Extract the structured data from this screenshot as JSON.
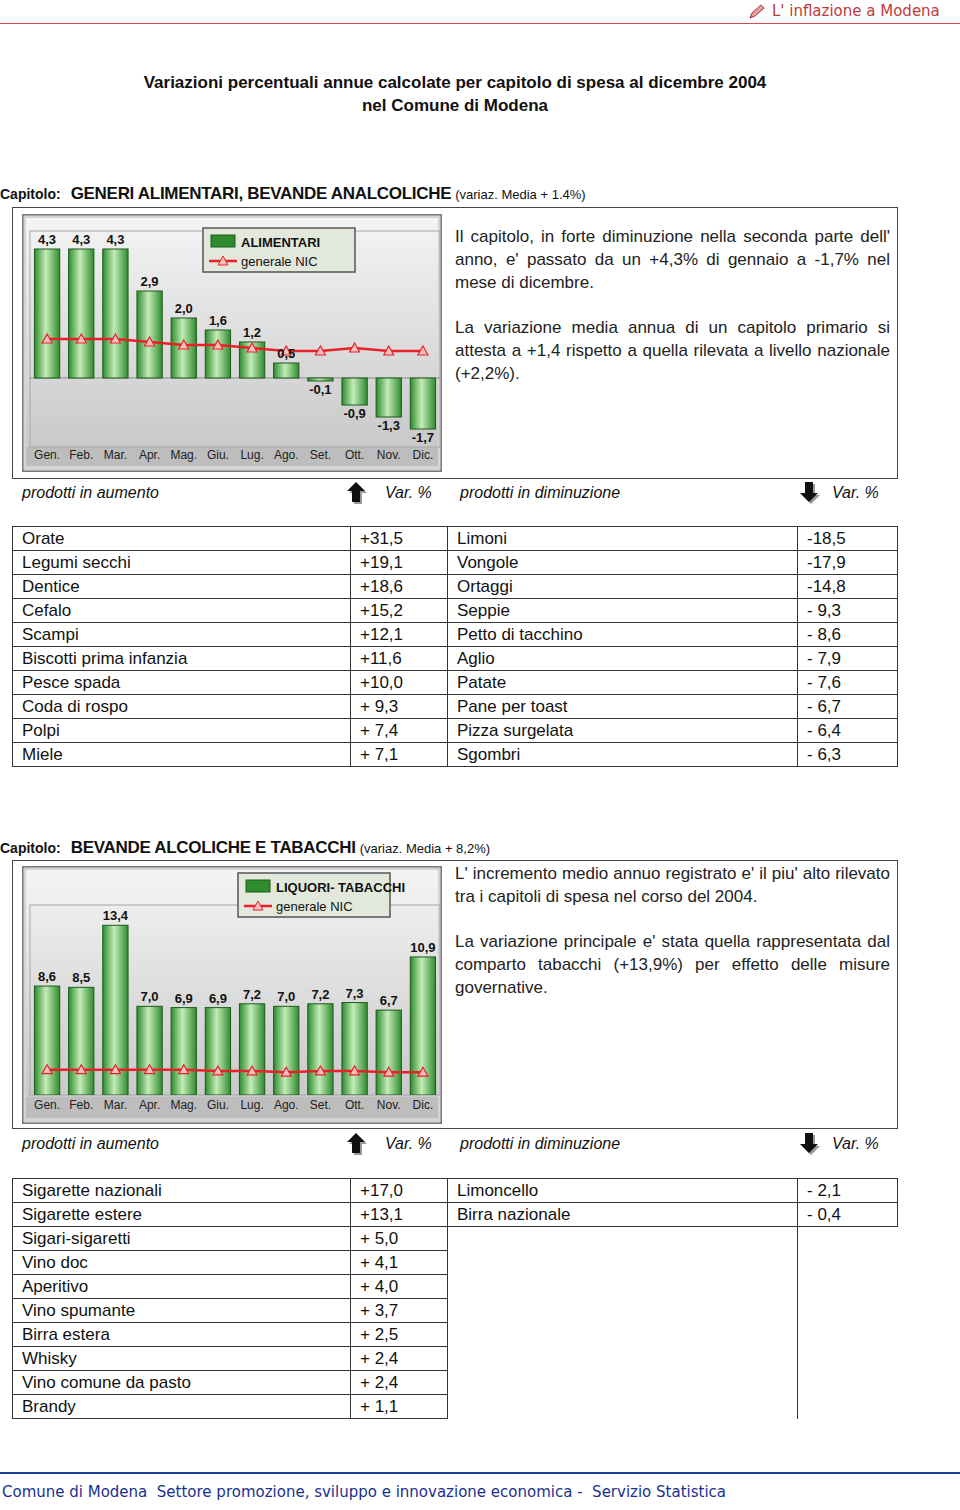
{
  "header": {
    "running_title": "L' inflazione a Modena"
  },
  "title": {
    "line1": "Variazioni percentuali annue calcolate per capitolo di spesa al dicembre 2004",
    "line2": "nel Comune di Modena"
  },
  "sections": [
    {
      "label": "Capitolo:",
      "name": "GENERI ALIMENTARI, BEVANDE ANALCOLICHE",
      "note": "(variaz. Media + 1.4%)",
      "paragraphs": [
        "Il capitolo, in forte diminuzione nella seconda parte dell' anno, e' passato da un +4,3% di gennaio a -1,7% nel mese di dicembre.",
        "La variazione media annua di un capitolo primario si attesta a +1,4 rispetto a quella rilevata a livello nazionale (+2,2%)."
      ],
      "table": {
        "header": [
          "prodotti in aumento",
          "Var. %",
          "prodotti in diminuzione",
          "Var. %"
        ],
        "increase": [
          [
            "Orate",
            "+31,5"
          ],
          [
            "Legumi secchi",
            "+19,1"
          ],
          [
            "Dentice",
            "+18,6"
          ],
          [
            "Cefalo",
            "+15,2"
          ],
          [
            "Scampi",
            "+12,1"
          ],
          [
            "Biscotti prima infanzia",
            "+11,6"
          ],
          [
            "Pesce spada",
            "+10,0"
          ],
          [
            "Coda di rospo",
            "+ 9,3"
          ],
          [
            "Polpi",
            "+ 7,4"
          ],
          [
            "Miele",
            "+ 7,1"
          ]
        ],
        "decrease": [
          [
            "Limoni",
            "-18,5"
          ],
          [
            "Vongole",
            "-17,9"
          ],
          [
            "Ortaggi",
            "-14,8"
          ],
          [
            "Seppie",
            "- 9,3"
          ],
          [
            "Petto di tacchino",
            "- 8,6"
          ],
          [
            "Aglio",
            "- 7,9"
          ],
          [
            "Patate",
            "- 7,6"
          ],
          [
            "Pane per toast",
            "- 6,7"
          ],
          [
            "Pizza surgelata",
            "- 6,4"
          ],
          [
            "Sgombri",
            "- 6,3"
          ]
        ]
      }
    },
    {
      "label": "Capitolo:",
      "name": "BEVANDE ALCOLICHE E TABACCHI",
      "note": "(variaz. Media + 8,2%)",
      "paragraphs": [
        "L' incremento medio annuo registrato e' il piu' alto rilevato tra i capitoli di spesa nel corso del 2004.",
        "La variazione principale e' stata quella rappresentata dal comparto tabacchi (+13,9%) per effetto delle misure governative."
      ],
      "table": {
        "header": [
          "prodotti in aumento",
          "Var. %",
          "prodotti in diminuzione",
          "Var. %"
        ],
        "increase": [
          [
            "Sigarette nazionali",
            "+17,0"
          ],
          [
            "Sigarette estere",
            "+13,1"
          ],
          [
            "Sigari-sigaretti",
            "+ 5,0"
          ],
          [
            "Vino doc",
            "+ 4,1"
          ],
          [
            "Aperitivo",
            "+ 4,0"
          ],
          [
            "Vino spumante",
            "+ 3,7"
          ],
          [
            "Birra estera",
            "+ 2,5"
          ],
          [
            "Whisky",
            "+ 2,4"
          ],
          [
            "Vino comune da pasto",
            "+ 2,4"
          ],
          [
            "Brandy",
            "+ 1,1"
          ]
        ],
        "decrease": [
          [
            "Limoncello",
            "- 2,1"
          ],
          [
            "Birra nazionale",
            "- 0,4"
          ]
        ]
      }
    }
  ],
  "chart_data": [
    {
      "type": "bar",
      "legend": "top",
      "tick_labels": "x",
      "data_labels": true,
      "categories": [
        "Gen.",
        "Feb.",
        "Mar.",
        "Apr.",
        "Mag.",
        "Giu.",
        "Lug.",
        "Ago.",
        "Set.",
        "Ott.",
        "Nov.",
        "Dic."
      ],
      "ylim": [
        -2.3,
        4.9
      ],
      "series": [
        {
          "name": "ALIMENTARI",
          "type": "bar",
          "color": "#2e8b2e",
          "values": [
            4.3,
            4.3,
            4.3,
            2.9,
            2.0,
            1.6,
            1.2,
            0.5,
            -0.1,
            -0.9,
            -1.3,
            -1.7
          ],
          "value_labels": [
            "4,3",
            "4,3",
            "4,3",
            "2,9",
            "2,0",
            "1,6",
            "1,2",
            "0,5",
            "-0,1",
            "-0,9",
            "-1,3",
            "-1,7"
          ]
        },
        {
          "name": "generale NIC",
          "type": "line",
          "color": "#e8202a",
          "marker": "triangle",
          "values": [
            1.3,
            1.3,
            1.3,
            1.2,
            1.1,
            1.1,
            1.0,
            0.9,
            0.9,
            1.0,
            0.9,
            0.9
          ]
        }
      ]
    },
    {
      "type": "bar",
      "legend": "top",
      "tick_labels": "x",
      "data_labels": true,
      "categories": [
        "Gen.",
        "Feb.",
        "Mar.",
        "Apr.",
        "Mag.",
        "Giu.",
        "Lug.",
        "Ago.",
        "Set.",
        "Ott.",
        "Nov.",
        "Dic."
      ],
      "ylim": [
        0,
        15
      ],
      "series": [
        {
          "name": "LIQUORI- TABACCHI",
          "type": "bar",
          "color": "#2e8b2e",
          "values": [
            8.6,
            8.5,
            13.4,
            7.0,
            6.9,
            6.9,
            7.2,
            7.0,
            7.2,
            7.3,
            6.7,
            10.9
          ],
          "value_labels": [
            "8,6",
            "8,5",
            "13,4",
            "7,0",
            "6,9",
            "6,9",
            "7,2",
            "7,0",
            "7,2",
            "7,3",
            "6,7",
            "10,9"
          ]
        },
        {
          "name": "generale NIC",
          "type": "line",
          "color": "#e8202a",
          "marker": "triangle",
          "values": [
            2.0,
            2.0,
            2.0,
            2.0,
            2.0,
            1.9,
            1.9,
            1.8,
            1.9,
            1.9,
            1.8,
            1.8
          ]
        }
      ]
    }
  ],
  "footer": "Comune di Modena  Settore promozione, sviluppo e innovazione economica -  Servizio Statistica"
}
